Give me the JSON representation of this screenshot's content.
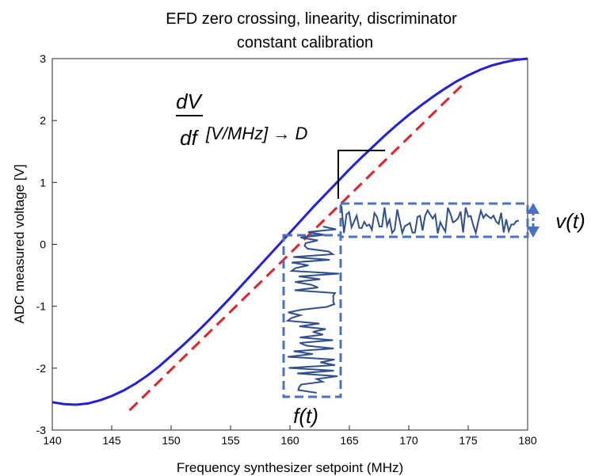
{
  "chart_data": {
    "type": "line",
    "title_lines": [
      "EFD zero crossing, linearity, discriminator",
      "constant calibration"
    ],
    "xlabel": "Frequency synthesizer setpoint (MHz)",
    "ylabel": "ADC measured voltage [V]",
    "xlim": [
      140,
      180
    ],
    "ylim": [
      -3,
      3
    ],
    "xticks": [
      140,
      145,
      150,
      155,
      160,
      165,
      170,
      175,
      180
    ],
    "yticks": [
      -3,
      -2,
      -1,
      0,
      1,
      2,
      3
    ],
    "grid": false,
    "colors": {
      "curve": "#1f1fe6",
      "fit": "#e8202a",
      "signal": "#2f4f8f",
      "box": "#4a72c4"
    },
    "series": [
      {
        "style": "solid",
        "x": [
          140,
          141,
          142,
          143,
          144,
          145,
          146,
          147,
          148,
          149,
          150,
          151,
          152,
          153,
          154,
          155,
          156,
          157,
          158,
          159,
          160,
          161,
          162,
          163,
          164,
          165,
          166,
          167,
          168,
          169,
          170,
          171,
          172,
          173,
          174,
          175,
          176,
          177,
          178,
          179,
          180
        ],
        "y": [
          -2.55,
          -2.58,
          -2.59,
          -2.57,
          -2.52,
          -2.45,
          -2.36,
          -2.25,
          -2.12,
          -1.97,
          -1.8,
          -1.63,
          -1.45,
          -1.26,
          -1.06,
          -0.86,
          -0.65,
          -0.44,
          -0.23,
          -0.02,
          0.19,
          0.4,
          0.61,
          0.81,
          1.01,
          1.21,
          1.4,
          1.58,
          1.76,
          1.93,
          2.09,
          2.24,
          2.38,
          2.51,
          2.63,
          2.73,
          2.82,
          2.89,
          2.94,
          2.98,
          3.0
        ]
      },
      {
        "style": "dashed",
        "x": [
          146.5,
          174.8
        ],
        "y": [
          -2.68,
          2.63
        ]
      }
    ],
    "annotations": {
      "dv": "dV",
      "df": "df",
      "units": "[V/MHz] → D",
      "ft": "f(t)",
      "vt": "v(t)"
    }
  }
}
